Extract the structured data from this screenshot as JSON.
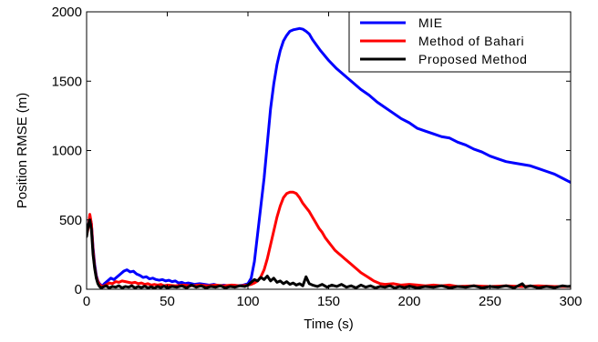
{
  "chart_data": {
    "type": "line",
    "title": "",
    "xlabel": "Time (s)",
    "ylabel": "Position RMSE (m)",
    "xlim": [
      0,
      300
    ],
    "ylim": [
      0,
      2000
    ],
    "xticks": [
      0,
      50,
      100,
      150,
      200,
      250,
      300
    ],
    "yticks": [
      0,
      500,
      1000,
      1500,
      2000
    ],
    "grid": false,
    "legend_position": "top-right",
    "series": [
      {
        "name": "MIE",
        "color": "#0000ff",
        "points": [
          [
            0,
            400
          ],
          [
            1,
            450
          ],
          [
            2,
            530
          ],
          [
            3,
            470
          ],
          [
            4,
            300
          ],
          [
            5,
            180
          ],
          [
            6,
            100
          ],
          [
            7,
            60
          ],
          [
            8,
            40
          ],
          [
            9,
            30
          ],
          [
            10,
            25
          ],
          [
            11,
            40
          ],
          [
            13,
            60
          ],
          [
            15,
            80
          ],
          [
            17,
            70
          ],
          [
            19,
            90
          ],
          [
            21,
            110
          ],
          [
            23,
            130
          ],
          [
            25,
            140
          ],
          [
            27,
            125
          ],
          [
            29,
            130
          ],
          [
            31,
            110
          ],
          [
            33,
            100
          ],
          [
            35,
            85
          ],
          [
            37,
            90
          ],
          [
            39,
            75
          ],
          [
            41,
            80
          ],
          [
            43,
            70
          ],
          [
            45,
            65
          ],
          [
            47,
            70
          ],
          [
            49,
            60
          ],
          [
            51,
            65
          ],
          [
            53,
            55
          ],
          [
            55,
            60
          ],
          [
            57,
            45
          ],
          [
            59,
            50
          ],
          [
            61,
            40
          ],
          [
            63,
            45
          ],
          [
            65,
            40
          ],
          [
            67,
            35
          ],
          [
            70,
            40
          ],
          [
            73,
            35
          ],
          [
            76,
            30
          ],
          [
            79,
            35
          ],
          [
            82,
            25
          ],
          [
            85,
            30
          ],
          [
            88,
            25
          ],
          [
            91,
            30
          ],
          [
            94,
            25
          ],
          [
            97,
            30
          ],
          [
            100,
            40
          ],
          [
            102,
            80
          ],
          [
            104,
            200
          ],
          [
            106,
            400
          ],
          [
            108,
            600
          ],
          [
            110,
            800
          ],
          [
            112,
            1050
          ],
          [
            114,
            1300
          ],
          [
            116,
            1480
          ],
          [
            118,
            1620
          ],
          [
            120,
            1720
          ],
          [
            122,
            1790
          ],
          [
            124,
            1830
          ],
          [
            126,
            1860
          ],
          [
            128,
            1870
          ],
          [
            130,
            1875
          ],
          [
            132,
            1880
          ],
          [
            134,
            1875
          ],
          [
            136,
            1860
          ],
          [
            138,
            1840
          ],
          [
            140,
            1800
          ],
          [
            145,
            1720
          ],
          [
            150,
            1650
          ],
          [
            155,
            1590
          ],
          [
            160,
            1540
          ],
          [
            165,
            1490
          ],
          [
            170,
            1440
          ],
          [
            175,
            1400
          ],
          [
            180,
            1350
          ],
          [
            185,
            1310
          ],
          [
            190,
            1270
          ],
          [
            195,
            1230
          ],
          [
            200,
            1200
          ],
          [
            205,
            1160
          ],
          [
            210,
            1140
          ],
          [
            215,
            1120
          ],
          [
            220,
            1100
          ],
          [
            225,
            1090
          ],
          [
            230,
            1060
          ],
          [
            235,
            1040
          ],
          [
            240,
            1010
          ],
          [
            245,
            990
          ],
          [
            250,
            960
          ],
          [
            255,
            940
          ],
          [
            260,
            920
          ],
          [
            265,
            910
          ],
          [
            270,
            900
          ],
          [
            275,
            890
          ],
          [
            280,
            870
          ],
          [
            285,
            850
          ],
          [
            290,
            830
          ],
          [
            295,
            800
          ],
          [
            300,
            770
          ]
        ]
      },
      {
        "name": "Method of Bahari",
        "color": "#ff0000",
        "points": [
          [
            0,
            390
          ],
          [
            1,
            440
          ],
          [
            2,
            540
          ],
          [
            3,
            470
          ],
          [
            4,
            280
          ],
          [
            5,
            160
          ],
          [
            6,
            90
          ],
          [
            7,
            55
          ],
          [
            8,
            35
          ],
          [
            9,
            25
          ],
          [
            10,
            20
          ],
          [
            12,
            30
          ],
          [
            14,
            45
          ],
          [
            16,
            40
          ],
          [
            18,
            55
          ],
          [
            20,
            50
          ],
          [
            22,
            60
          ],
          [
            24,
            55
          ],
          [
            26,
            50
          ],
          [
            28,
            45
          ],
          [
            30,
            50
          ],
          [
            32,
            40
          ],
          [
            34,
            45
          ],
          [
            36,
            35
          ],
          [
            38,
            40
          ],
          [
            40,
            30
          ],
          [
            42,
            35
          ],
          [
            44,
            30
          ],
          [
            46,
            35
          ],
          [
            48,
            25
          ],
          [
            50,
            30
          ],
          [
            55,
            25
          ],
          [
            60,
            30
          ],
          [
            65,
            25
          ],
          [
            70,
            30
          ],
          [
            75,
            25
          ],
          [
            80,
            30
          ],
          [
            85,
            25
          ],
          [
            90,
            30
          ],
          [
            95,
            25
          ],
          [
            100,
            30
          ],
          [
            102,
            35
          ],
          [
            104,
            45
          ],
          [
            106,
            60
          ],
          [
            108,
            90
          ],
          [
            110,
            140
          ],
          [
            112,
            220
          ],
          [
            114,
            320
          ],
          [
            116,
            420
          ],
          [
            118,
            520
          ],
          [
            120,
            600
          ],
          [
            122,
            660
          ],
          [
            124,
            690
          ],
          [
            126,
            700
          ],
          [
            128,
            700
          ],
          [
            130,
            690
          ],
          [
            132,
            660
          ],
          [
            134,
            620
          ],
          [
            136,
            590
          ],
          [
            138,
            560
          ],
          [
            140,
            520
          ],
          [
            142,
            480
          ],
          [
            144,
            440
          ],
          [
            146,
            410
          ],
          [
            148,
            370
          ],
          [
            150,
            340
          ],
          [
            152,
            310
          ],
          [
            154,
            280
          ],
          [
            156,
            260
          ],
          [
            158,
            240
          ],
          [
            160,
            220
          ],
          [
            162,
            200
          ],
          [
            164,
            180
          ],
          [
            166,
            160
          ],
          [
            168,
            140
          ],
          [
            170,
            120
          ],
          [
            172,
            105
          ],
          [
            174,
            90
          ],
          [
            176,
            75
          ],
          [
            178,
            60
          ],
          [
            180,
            50
          ],
          [
            182,
            40
          ],
          [
            185,
            35
          ],
          [
            190,
            40
          ],
          [
            195,
            30
          ],
          [
            200,
            35
          ],
          [
            205,
            30
          ],
          [
            210,
            25
          ],
          [
            215,
            30
          ],
          [
            220,
            25
          ],
          [
            225,
            30
          ],
          [
            230,
            20
          ],
          [
            240,
            25
          ],
          [
            250,
            20
          ],
          [
            260,
            25
          ],
          [
            270,
            20
          ],
          [
            280,
            25
          ],
          [
            290,
            20
          ],
          [
            300,
            20
          ]
        ]
      },
      {
        "name": "Proposed Method",
        "color": "#000000",
        "points": [
          [
            0,
            380
          ],
          [
            1,
            460
          ],
          [
            2,
            500
          ],
          [
            3,
            430
          ],
          [
            4,
            250
          ],
          [
            5,
            150
          ],
          [
            6,
            80
          ],
          [
            7,
            40
          ],
          [
            8,
            20
          ],
          [
            9,
            10
          ],
          [
            10,
            15
          ],
          [
            12,
            25
          ],
          [
            14,
            10
          ],
          [
            16,
            20
          ],
          [
            18,
            15
          ],
          [
            20,
            25
          ],
          [
            22,
            10
          ],
          [
            24,
            20
          ],
          [
            26,
            15
          ],
          [
            28,
            25
          ],
          [
            30,
            10
          ],
          [
            32,
            20
          ],
          [
            34,
            12
          ],
          [
            36,
            22
          ],
          [
            38,
            10
          ],
          [
            40,
            18
          ],
          [
            42,
            8
          ],
          [
            44,
            20
          ],
          [
            46,
            12
          ],
          [
            48,
            22
          ],
          [
            50,
            10
          ],
          [
            53,
            20
          ],
          [
            56,
            15
          ],
          [
            59,
            25
          ],
          [
            62,
            10
          ],
          [
            65,
            30
          ],
          [
            68,
            15
          ],
          [
            71,
            25
          ],
          [
            74,
            10
          ],
          [
            77,
            20
          ],
          [
            80,
            15
          ],
          [
            83,
            25
          ],
          [
            86,
            10
          ],
          [
            89,
            20
          ],
          [
            92,
            15
          ],
          [
            95,
            25
          ],
          [
            98,
            20
          ],
          [
            100,
            30
          ],
          [
            102,
            50
          ],
          [
            104,
            70
          ],
          [
            106,
            60
          ],
          [
            108,
            85
          ],
          [
            110,
            70
          ],
          [
            112,
            95
          ],
          [
            114,
            60
          ],
          [
            116,
            80
          ],
          [
            118,
            50
          ],
          [
            120,
            60
          ],
          [
            122,
            40
          ],
          [
            124,
            55
          ],
          [
            126,
            35
          ],
          [
            128,
            45
          ],
          [
            130,
            30
          ],
          [
            132,
            40
          ],
          [
            134,
            25
          ],
          [
            136,
            90
          ],
          [
            138,
            40
          ],
          [
            140,
            30
          ],
          [
            143,
            20
          ],
          [
            146,
            35
          ],
          [
            149,
            15
          ],
          [
            152,
            30
          ],
          [
            155,
            20
          ],
          [
            158,
            35
          ],
          [
            161,
            15
          ],
          [
            164,
            25
          ],
          [
            167,
            10
          ],
          [
            170,
            30
          ],
          [
            173,
            15
          ],
          [
            176,
            25
          ],
          [
            179,
            10
          ],
          [
            182,
            20
          ],
          [
            185,
            15
          ],
          [
            188,
            25
          ],
          [
            191,
            10
          ],
          [
            194,
            20
          ],
          [
            197,
            12
          ],
          [
            200,
            22
          ],
          [
            205,
            10
          ],
          [
            210,
            20
          ],
          [
            215,
            15
          ],
          [
            220,
            25
          ],
          [
            225,
            10
          ],
          [
            230,
            20
          ],
          [
            235,
            15
          ],
          [
            240,
            25
          ],
          [
            245,
            10
          ],
          [
            250,
            20
          ],
          [
            255,
            15
          ],
          [
            260,
            25
          ],
          [
            265,
            10
          ],
          [
            270,
            40
          ],
          [
            272,
            15
          ],
          [
            275,
            25
          ],
          [
            280,
            10
          ],
          [
            285,
            20
          ],
          [
            290,
            12
          ],
          [
            295,
            25
          ],
          [
            298,
            20
          ],
          [
            300,
            22
          ]
        ]
      }
    ]
  }
}
